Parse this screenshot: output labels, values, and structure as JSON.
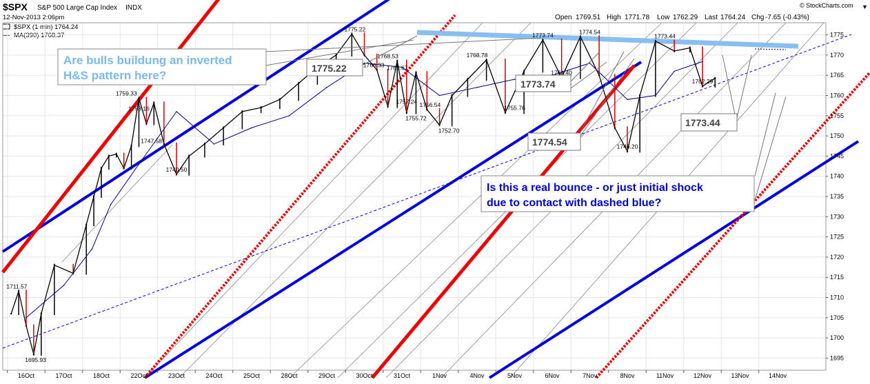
{
  "header": {
    "symbol": "$SPX",
    "name": "S&P 500 Large Cap Index",
    "exchange": "INDX",
    "datetime": "12-Nov-2013 2:06pm",
    "watermark": "© StockCharts.com",
    "open_label": "Open",
    "open": "1769.51",
    "high_label": "High",
    "high": "1771.78",
    "low_label": "Low",
    "low": "1762.29",
    "last_label": "Last",
    "last": "1764.24",
    "chg_label": "Chg",
    "chg": "-7.65 (-0.43%)",
    "legend_price": "$SPX (1 min) 1764.24",
    "legend_ma": "MA(390) 1768.37"
  },
  "colors": {
    "price": "#000000",
    "down_bar": "#cc0000",
    "ma": "#000080",
    "channel_blue": "#0000dd",
    "channel_red": "#ee0000",
    "neckline": "#89bff0",
    "callout_light_blue_text": "#7ab8ee",
    "callout_dark_blue_text": "#0000cc",
    "grid": "#e6e6e6"
  },
  "annotations": {
    "bulls_question": [
      "Are bulls buildung an inverted",
      "H&S pattern here?"
    ],
    "bounce_question": [
      "Is this a real bounce - or just initial shock",
      "due to contact with dashed blue?"
    ],
    "boxed_labels": [
      "1775.22",
      "1773.74",
      "1774.54",
      "1773.44"
    ]
  },
  "chart_data": {
    "type": "line",
    "title": "",
    "xlabel": "",
    "ylabel": "",
    "ylim": [
      1692,
      1778
    ],
    "yticks": [
      1695,
      1700,
      1705,
      1710,
      1715,
      1720,
      1725,
      1730,
      1735,
      1740,
      1745,
      1750,
      1755,
      1760,
      1765,
      1770,
      1775
    ],
    "x_categories": [
      "16Oct",
      "17Oct",
      "18Oct",
      "22Oct",
      "23Oct",
      "24Oct",
      "25Oct",
      "28Oct",
      "29Oct",
      "30Oct",
      "31Oct",
      "1Nov",
      "4Nov",
      "5Nov",
      "6Nov",
      "7Nov",
      "8Nov",
      "11Nov",
      "12Nov",
      "13Nov",
      "14Nov"
    ],
    "grid": true,
    "legend": "top-left",
    "series": [
      {
        "name": "$SPX (1 min)",
        "points": [
          [
            "16Oct",
            1706
          ],
          [
            "16Oct",
            1711.57
          ],
          [
            "16Oct",
            1703
          ],
          [
            "16Oct",
            1695.93
          ],
          [
            "16Oct",
            1706
          ],
          [
            "17Oct",
            1718
          ],
          [
            "17Oct",
            1716
          ],
          [
            "18Oct",
            1728
          ],
          [
            "18Oct",
            1735
          ],
          [
            "18Oct",
            1742
          ],
          [
            "18Oct",
            1745
          ],
          [
            "18Oct",
            1745.5
          ],
          [
            "22Oct",
            1742
          ],
          [
            "22Oct",
            1747.58
          ],
          [
            "22Oct",
            1759.33
          ],
          [
            "22Oct",
            1753
          ],
          [
            "22Oct",
            1758.16
          ],
          [
            "23Oct",
            1748
          ],
          [
            "23Oct",
            1740.5
          ],
          [
            "23Oct",
            1745
          ],
          [
            "24Oct",
            1748
          ],
          [
            "24Oct",
            1752
          ],
          [
            "25Oct",
            1756
          ],
          [
            "25Oct",
            1757
          ],
          [
            "28Oct",
            1759
          ],
          [
            "28Oct",
            1763
          ],
          [
            "29Oct",
            1767
          ],
          [
            "29Oct",
            1770
          ],
          [
            "30Oct",
            1775.22
          ],
          [
            "30Oct",
            1770
          ],
          [
            "30Oct",
            1766.33
          ],
          [
            "31Oct",
            1757.24
          ],
          [
            "31Oct",
            1768.53
          ],
          [
            "31Oct",
            1755.72
          ],
          [
            "31Oct",
            1765.67
          ],
          [
            "1Nov",
            1756.54
          ],
          [
            "1Nov",
            1752.7
          ],
          [
            "1Nov",
            1760
          ],
          [
            "4Nov",
            1764
          ],
          [
            "4Nov",
            1768.78
          ],
          [
            "5Nov",
            1755.76
          ],
          [
            "5Nov",
            1766
          ],
          [
            "6Nov",
            1773.74
          ],
          [
            "6Nov",
            1764.4
          ],
          [
            "7Nov",
            1774.54
          ],
          [
            "7Nov",
            1765
          ],
          [
            "8Nov",
            1752
          ],
          [
            "8Nov",
            1746.2
          ],
          [
            "8Nov",
            1760
          ],
          [
            "11Nov",
            1773.44
          ],
          [
            "11Nov",
            1771
          ],
          [
            "12Nov",
            1771.78
          ],
          [
            "12Nov",
            1762.29
          ],
          [
            "12Nov",
            1764.24
          ]
        ]
      },
      {
        "name": "MA(390)",
        "points": [
          [
            "16Oct",
            1705
          ],
          [
            "17Oct",
            1713
          ],
          [
            "18Oct",
            1722
          ],
          [
            "18Oct",
            1733
          ],
          [
            "22Oct",
            1743
          ],
          [
            "23Oct",
            1756
          ],
          [
            "24Oct",
            1748
          ],
          [
            "25Oct",
            1752
          ],
          [
            "28Oct",
            1755
          ],
          [
            "29Oct",
            1762
          ],
          [
            "30Oct",
            1768
          ],
          [
            "31Oct",
            1767
          ],
          [
            "1Nov",
            1760
          ],
          [
            "4Nov",
            1762
          ],
          [
            "5Nov",
            1764
          ],
          [
            "6Nov",
            1765
          ],
          [
            "7Nov",
            1768
          ],
          [
            "8Nov",
            1759
          ],
          [
            "11Nov",
            1760
          ],
          [
            "11Nov",
            1766
          ],
          [
            "12Nov",
            1768.37
          ]
        ]
      }
    ],
    "price_labels": [
      {
        "x": "16Oct",
        "value": 1711.57
      },
      {
        "x": "16Oct",
        "value": 1695.93
      },
      {
        "x": "22Oct",
        "value": 1759.33
      },
      {
        "x": "22Oct",
        "value": 1758.16
      },
      {
        "x": "22Oct",
        "value": 1747.58
      },
      {
        "x": "23Oct",
        "value": 1740.5
      },
      {
        "x": "30Oct",
        "value": 1775.22
      },
      {
        "x": "30Oct",
        "value": 1766.33
      },
      {
        "x": "31Oct",
        "value": 1768.53
      },
      {
        "x": "31Oct",
        "value": 1765.67
      },
      {
        "x": "31Oct",
        "value": 1757.24
      },
      {
        "x": "31Oct",
        "value": 1755.72
      },
      {
        "x": "1Nov",
        "value": 1756.54
      },
      {
        "x": "1Nov",
        "value": 1752.7
      },
      {
        "x": "4Nov",
        "value": 1768.78
      },
      {
        "x": "5Nov",
        "value": 1755.76
      },
      {
        "x": "6Nov",
        "value": 1773.74
      },
      {
        "x": "6Nov",
        "value": 1764.4
      },
      {
        "x": "7Nov",
        "value": 1774.54
      },
      {
        "x": "8Nov",
        "value": 1746.2
      },
      {
        "x": "11Nov",
        "value": 1773.44
      },
      {
        "x": "12Nov",
        "value": 1762.29
      }
    ]
  }
}
